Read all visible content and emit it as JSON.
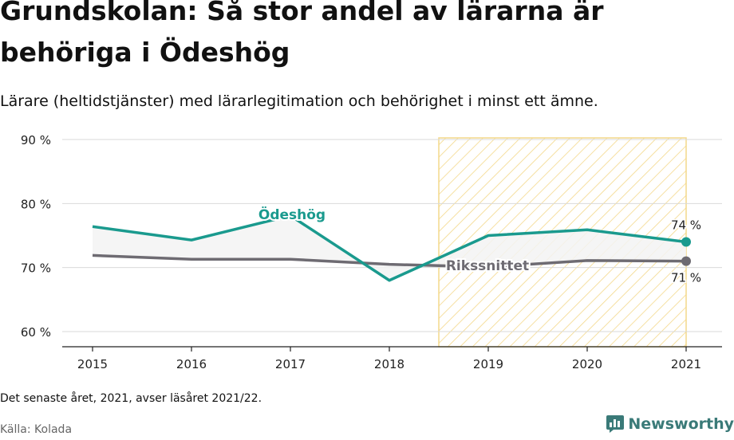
{
  "header": {
    "title": "Grundskolan: Så stor andel av lärarna är behöriga i Ödeshög",
    "subtitle": "Lärare (heltidstjänster) med lärarlegitimation och behörighet i minst ett ämne."
  },
  "footer": {
    "note": "Det senaste året, 2021, avser läsåret 2021/22.",
    "source": "Källa: Kolada",
    "brand": "Newsworthy"
  },
  "chart_data": {
    "type": "line",
    "title": "Grundskolan: Så stor andel av lärarna är behöriga i Ödeshög",
    "subtitle": "Lärare (heltidstjänster) med lärarlegitimation och behörighet i minst ett ämne.",
    "x": [
      2015,
      2016,
      2017,
      2018,
      2019,
      2020,
      2021
    ],
    "x_tick_labels": [
      "2015",
      "2016",
      "2017",
      "2018",
      "2019",
      "2020",
      "2021"
    ],
    "ylim": [
      58,
      90
    ],
    "y_ticks": [
      60,
      70,
      80,
      90
    ],
    "y_tick_labels": [
      "60 %",
      "70 %",
      "80 %",
      "90 %"
    ],
    "grid": true,
    "highlight_range": [
      2018.5,
      2021
    ],
    "series": [
      {
        "name": "Ödeshög",
        "color": "#1a9a8e",
        "values": [
          76.4,
          74.3,
          78.1,
          68.0,
          75.0,
          75.9,
          74.0
        ],
        "end_label": "74 %"
      },
      {
        "name": "Rikssnittet",
        "color": "#6e6b72",
        "values": [
          71.9,
          71.3,
          71.3,
          70.5,
          70.1,
          71.1,
          71.0
        ],
        "end_label": "71 %"
      }
    ]
  }
}
